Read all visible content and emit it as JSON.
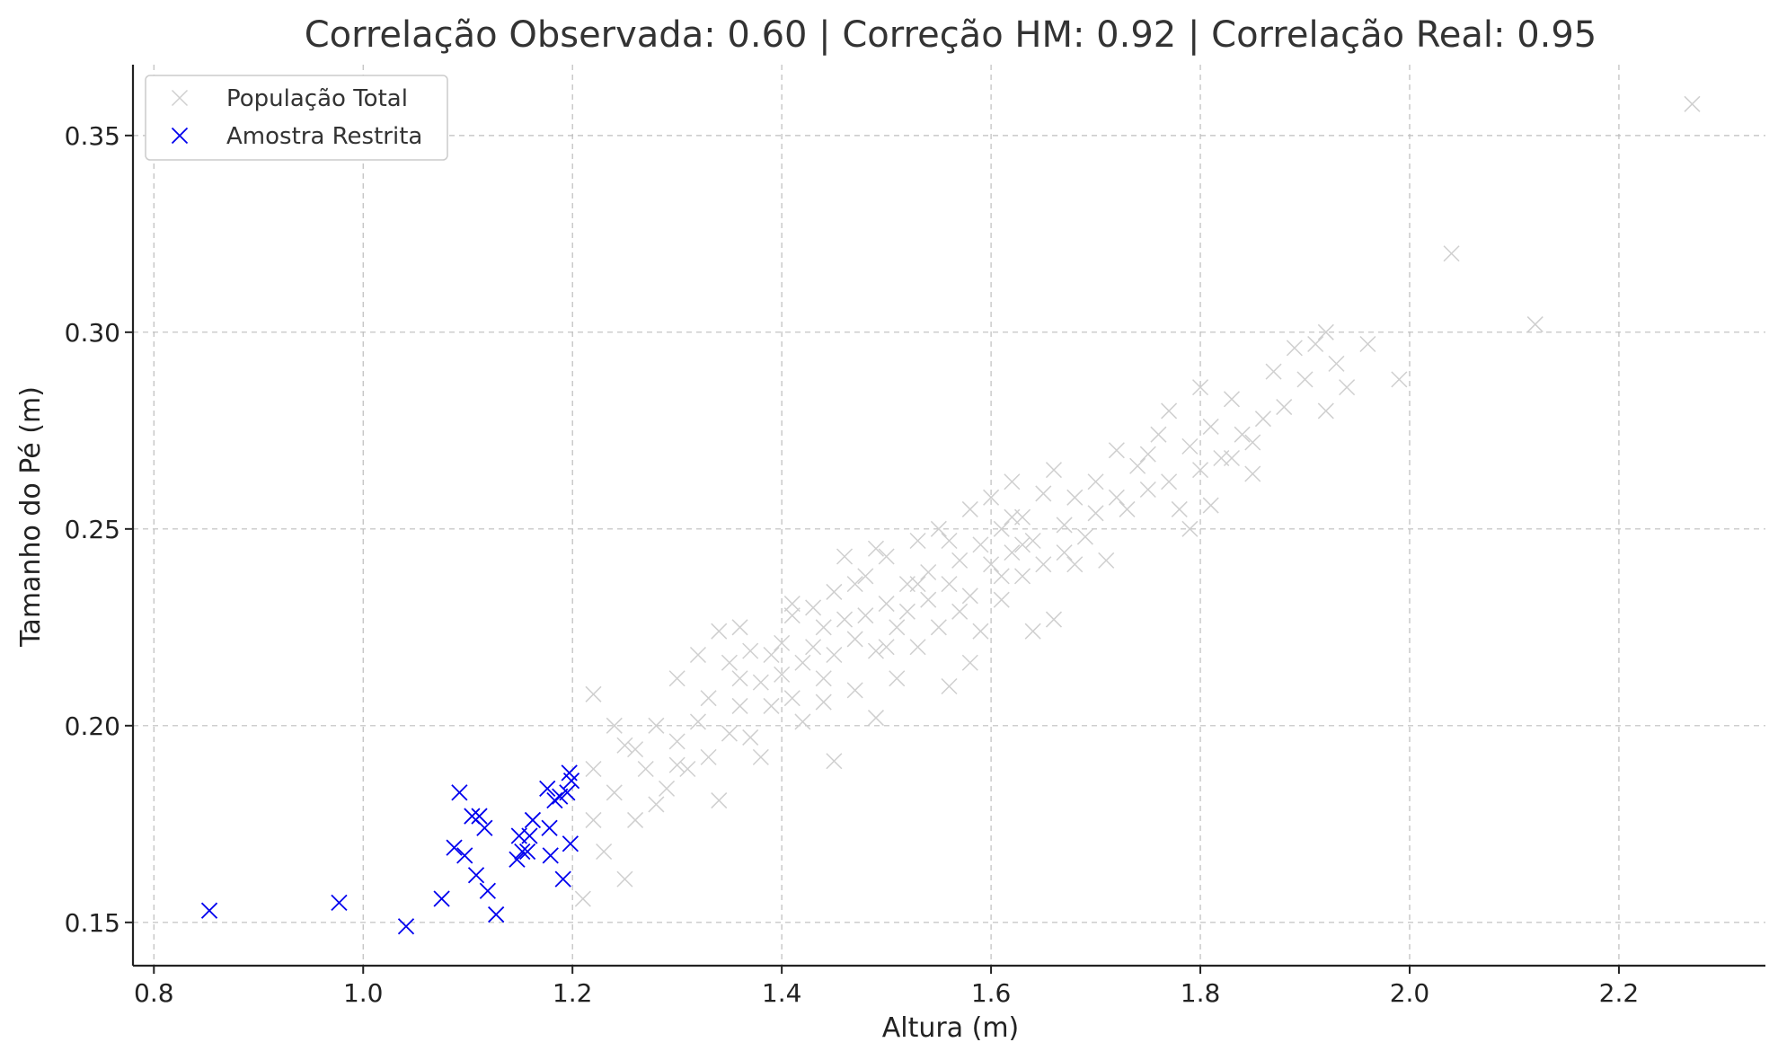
{
  "chart_data": {
    "type": "scatter",
    "title": "Correlação Observada: 0.60 | Correção HM: 0.92 | Correlação Real: 0.95",
    "xlabel": "Altura (m)",
    "ylabel": "Tamanho do Pé (m)",
    "xlim": [
      0.78,
      2.34
    ],
    "ylim": [
      0.139,
      0.368
    ],
    "xticks": [
      0.8,
      1.0,
      1.2,
      1.4,
      1.6,
      1.8,
      2.0,
      2.2
    ],
    "xtick_labels": [
      "0.8",
      "1.0",
      "1.2",
      "1.4",
      "1.6",
      "1.8",
      "2.0",
      "2.2"
    ],
    "yticks": [
      0.15,
      0.2,
      0.25,
      0.3,
      0.35
    ],
    "ytick_labels": [
      "0.15",
      "0.20",
      "0.25",
      "0.30",
      "0.35"
    ],
    "grid": true,
    "legend": "top-left",
    "series": [
      {
        "name": "População Total",
        "color": "#cfcfcf",
        "marker": "x",
        "points": [
          [
            1.21,
            0.156
          ],
          [
            1.22,
            0.176
          ],
          [
            1.23,
            0.168
          ],
          [
            1.25,
            0.161
          ],
          [
            1.22,
            0.189
          ],
          [
            1.24,
            0.183
          ],
          [
            1.26,
            0.176
          ],
          [
            1.25,
            0.195
          ],
          [
            1.27,
            0.189
          ],
          [
            1.28,
            0.18
          ],
          [
            1.22,
            0.208
          ],
          [
            1.24,
            0.2
          ],
          [
            1.26,
            0.194
          ],
          [
            1.28,
            0.2
          ],
          [
            1.29,
            0.184
          ],
          [
            1.3,
            0.212
          ],
          [
            1.3,
            0.196
          ],
          [
            1.31,
            0.189
          ],
          [
            1.32,
            0.201
          ],
          [
            1.33,
            0.192
          ],
          [
            1.33,
            0.207
          ],
          [
            1.34,
            0.181
          ],
          [
            1.34,
            0.224
          ],
          [
            1.35,
            0.216
          ],
          [
            1.35,
            0.198
          ],
          [
            1.36,
            0.212
          ],
          [
            1.36,
            0.205
          ],
          [
            1.37,
            0.219
          ],
          [
            1.37,
            0.197
          ],
          [
            1.38,
            0.192
          ],
          [
            1.38,
            0.211
          ],
          [
            1.39,
            0.205
          ],
          [
            1.39,
            0.218
          ],
          [
            1.4,
            0.213
          ],
          [
            1.4,
            0.221
          ],
          [
            1.41,
            0.207
          ],
          [
            1.41,
            0.228
          ],
          [
            1.42,
            0.216
          ],
          [
            1.42,
            0.201
          ],
          [
            1.43,
            0.22
          ],
          [
            1.43,
            0.23
          ],
          [
            1.44,
            0.212
          ],
          [
            1.44,
            0.225
          ],
          [
            1.45,
            0.234
          ],
          [
            1.45,
            0.218
          ],
          [
            1.45,
            0.191
          ],
          [
            1.46,
            0.227
          ],
          [
            1.46,
            0.243
          ],
          [
            1.47,
            0.222
          ],
          [
            1.47,
            0.209
          ],
          [
            1.48,
            0.228
          ],
          [
            1.48,
            0.238
          ],
          [
            1.49,
            0.219
          ],
          [
            1.49,
            0.202
          ],
          [
            1.5,
            0.231
          ],
          [
            1.5,
            0.243
          ],
          [
            1.51,
            0.225
          ],
          [
            1.51,
            0.212
          ],
          [
            1.52,
            0.236
          ],
          [
            1.52,
            0.229
          ],
          [
            1.53,
            0.247
          ],
          [
            1.53,
            0.22
          ],
          [
            1.54,
            0.232
          ],
          [
            1.54,
            0.239
          ],
          [
            1.55,
            0.225
          ],
          [
            1.55,
            0.25
          ],
          [
            1.56,
            0.236
          ],
          [
            1.56,
            0.21
          ],
          [
            1.57,
            0.229
          ],
          [
            1.57,
            0.242
          ],
          [
            1.58,
            0.255
          ],
          [
            1.58,
            0.233
          ],
          [
            1.59,
            0.246
          ],
          [
            1.59,
            0.224
          ],
          [
            1.6,
            0.241
          ],
          [
            1.6,
            0.258
          ],
          [
            1.61,
            0.232
          ],
          [
            1.61,
            0.25
          ],
          [
            1.62,
            0.244
          ],
          [
            1.62,
            0.262
          ],
          [
            1.63,
            0.238
          ],
          [
            1.63,
            0.253
          ],
          [
            1.64,
            0.247
          ],
          [
            1.64,
            0.224
          ],
          [
            1.65,
            0.259
          ],
          [
            1.65,
            0.241
          ],
          [
            1.66,
            0.265
          ],
          [
            1.66,
            0.227
          ],
          [
            1.67,
            0.251
          ],
          [
            1.67,
            0.244
          ],
          [
            1.68,
            0.258
          ],
          [
            1.69,
            0.248
          ],
          [
            1.7,
            0.262
          ],
          [
            1.7,
            0.254
          ],
          [
            1.71,
            0.242
          ],
          [
            1.72,
            0.27
          ],
          [
            1.73,
            0.255
          ],
          [
            1.74,
            0.266
          ],
          [
            1.75,
            0.26
          ],
          [
            1.76,
            0.274
          ],
          [
            1.77,
            0.262
          ],
          [
            1.77,
            0.28
          ],
          [
            1.78,
            0.255
          ],
          [
            1.79,
            0.271
          ],
          [
            1.8,
            0.265
          ],
          [
            1.8,
            0.286
          ],
          [
            1.81,
            0.276
          ],
          [
            1.81,
            0.256
          ],
          [
            1.82,
            0.268
          ],
          [
            1.83,
            0.283
          ],
          [
            1.84,
            0.274
          ],
          [
            1.85,
            0.264
          ],
          [
            1.86,
            0.278
          ],
          [
            1.87,
            0.29
          ],
          [
            1.88,
            0.281
          ],
          [
            1.89,
            0.296
          ],
          [
            1.9,
            0.288
          ],
          [
            1.91,
            0.297
          ],
          [
            1.92,
            0.3
          ],
          [
            1.92,
            0.28
          ],
          [
            1.93,
            0.292
          ],
          [
            1.94,
            0.286
          ],
          [
            1.96,
            0.297
          ],
          [
            1.99,
            0.288
          ],
          [
            2.04,
            0.32
          ],
          [
            2.12,
            0.302
          ],
          [
            2.27,
            0.358
          ],
          [
            1.3,
            0.19
          ],
          [
            1.32,
            0.218
          ],
          [
            1.36,
            0.225
          ],
          [
            1.41,
            0.231
          ],
          [
            1.44,
            0.206
          ],
          [
            1.47,
            0.236
          ],
          [
            1.49,
            0.245
          ],
          [
            1.53,
            0.236
          ],
          [
            1.56,
            0.247
          ],
          [
            1.58,
            0.216
          ],
          [
            1.61,
            0.238
          ],
          [
            1.63,
            0.246
          ],
          [
            1.68,
            0.241
          ],
          [
            1.72,
            0.258
          ],
          [
            1.75,
            0.269
          ],
          [
            1.79,
            0.25
          ],
          [
            1.83,
            0.268
          ],
          [
            1.85,
            0.272
          ],
          [
            1.62,
            0.253
          ],
          [
            1.5,
            0.22
          ]
        ]
      },
      {
        "name": "Amostra Restrita",
        "color": "#0000ee",
        "marker": "x",
        "points": [
          [
            0.853,
            0.153
          ],
          [
            0.977,
            0.155
          ],
          [
            1.041,
            0.149
          ],
          [
            1.075,
            0.156
          ],
          [
            1.087,
            0.169
          ],
          [
            1.092,
            0.183
          ],
          [
            1.097,
            0.167
          ],
          [
            1.104,
            0.177
          ],
          [
            1.108,
            0.162
          ],
          [
            1.111,
            0.177
          ],
          [
            1.116,
            0.174
          ],
          [
            1.119,
            0.158
          ],
          [
            1.127,
            0.152
          ],
          [
            1.147,
            0.166
          ],
          [
            1.149,
            0.172
          ],
          [
            1.152,
            0.168
          ],
          [
            1.157,
            0.168
          ],
          [
            1.159,
            0.172
          ],
          [
            1.162,
            0.176
          ],
          [
            1.176,
            0.184
          ],
          [
            1.178,
            0.174
          ],
          [
            1.179,
            0.167
          ],
          [
            1.183,
            0.181
          ],
          [
            1.188,
            0.182
          ],
          [
            1.191,
            0.161
          ],
          [
            1.195,
            0.183
          ],
          [
            1.197,
            0.188
          ],
          [
            1.198,
            0.17
          ],
          [
            1.199,
            0.186
          ]
        ]
      }
    ]
  }
}
